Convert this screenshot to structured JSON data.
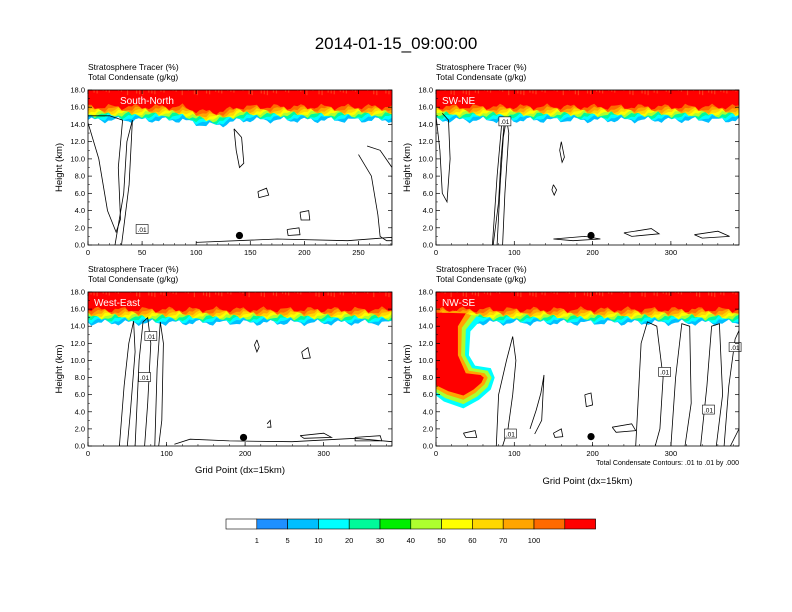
{
  "figure": {
    "title": "2014-01-15_09:00:00",
    "note": "Total Condensate Contours: .01 to .01 by .000"
  },
  "colorbar": {
    "colors": [
      "#ffffff",
      "#1e90ff",
      "#00bfff",
      "#00ffff",
      "#00fa9a",
      "#00ee00",
      "#adff2f",
      "#ffff00",
      "#ffd700",
      "#ffa500",
      "#ff6a00",
      "#ff0000"
    ],
    "labels": [
      "1",
      "5",
      "10",
      "20",
      "30",
      "40",
      "50",
      "60",
      "70",
      "100"
    ]
  },
  "chart_data": [
    {
      "type": "heatmap",
      "panel": "South-North",
      "subtitle_lines": [
        "Stratosphere Tracer   (%)",
        "Total Condensate   (g/kg)"
      ],
      "ylabel": "Height (km)",
      "xlabel": "",
      "xlim": [
        0,
        281
      ],
      "ylim": [
        0,
        18
      ],
      "x_ticks": [
        "0",
        "50",
        "100",
        "150",
        "200",
        "250"
      ],
      "y_ticks": [
        "0.0",
        "2.0",
        "4.0",
        "6.0",
        "8.0",
        "10.0",
        "12.0",
        "14.0",
        "16.0",
        "18.0"
      ],
      "tropopause_km": 15.7,
      "contour_labels": [
        {
          "text": ".01",
          "x": 50,
          "y": 1.8
        }
      ],
      "marker": {
        "x": 140,
        "y": 1.1
      }
    },
    {
      "type": "heatmap",
      "panel": "SW-NE",
      "subtitle_lines": [
        "Stratosphere Tracer   (%)",
        "Total Condensate   (g/kg)"
      ],
      "ylabel": "Height (km)",
      "xlabel": "",
      "xlim": [
        0,
        387
      ],
      "ylim": [
        0,
        18
      ],
      "x_ticks": [
        "0",
        "100",
        "200",
        "300"
      ],
      "y_ticks": [
        "0.0",
        "2.0",
        "4.0",
        "6.0",
        "8.0",
        "10.0",
        "12.0",
        "14.0",
        "16.0",
        "18.0"
      ],
      "tropopause_km": 15.7,
      "contour_labels": [
        {
          "text": ".01",
          "x": 88,
          "y": 14.3
        }
      ],
      "marker": {
        "x": 198,
        "y": 1.1
      }
    },
    {
      "type": "heatmap",
      "panel": "West-East",
      "subtitle_lines": [
        "Stratosphere Tracer   (%)",
        "Total Condensate   (g/kg)"
      ],
      "ylabel": "Height (km)",
      "xlabel": "Grid Point (dx=15km)",
      "xlim": [
        0,
        387
      ],
      "ylim": [
        0,
        18
      ],
      "x_ticks": [
        "0",
        "100",
        "200",
        "300"
      ],
      "y_ticks": [
        "0.0",
        "2.0",
        "4.0",
        "6.0",
        "8.0",
        "10.0",
        "12.0",
        "14.0",
        "16.0",
        "18.0"
      ],
      "tropopause_km": 15.6,
      "contour_labels": [
        {
          "text": ".01",
          "x": 80,
          "y": 12.8
        },
        {
          "text": ".01",
          "x": 72,
          "y": 8.0
        }
      ],
      "marker": {
        "x": 198,
        "y": 1.0
      }
    },
    {
      "type": "heatmap",
      "panel": "NW-SE",
      "subtitle_lines": [
        "Stratosphere Tracer   (%)",
        "Total Condensate   (g/kg)"
      ],
      "ylabel": "Height (km)",
      "xlabel": "Grid Point (dx=15km)",
      "xlim": [
        0,
        387
      ],
      "ylim": [
        0,
        18
      ],
      "x_ticks": [
        "0",
        "100",
        "200",
        "300"
      ],
      "y_ticks": [
        "0.0",
        "2.0",
        "4.0",
        "6.0",
        "8.0",
        "10.0",
        "12.0",
        "14.0",
        "16.0",
        "18.0"
      ],
      "tropopause_km": 15.6,
      "contour_labels": [
        {
          "text": ".01",
          "x": 292,
          "y": 8.6
        },
        {
          "text": ".01",
          "x": 348,
          "y": 4.2
        },
        {
          "text": ".01",
          "x": 382,
          "y": 11.5
        },
        {
          "text": ".01",
          "x": 95,
          "y": 1.4
        }
      ],
      "marker": {
        "x": 198,
        "y": 1.1
      }
    }
  ]
}
